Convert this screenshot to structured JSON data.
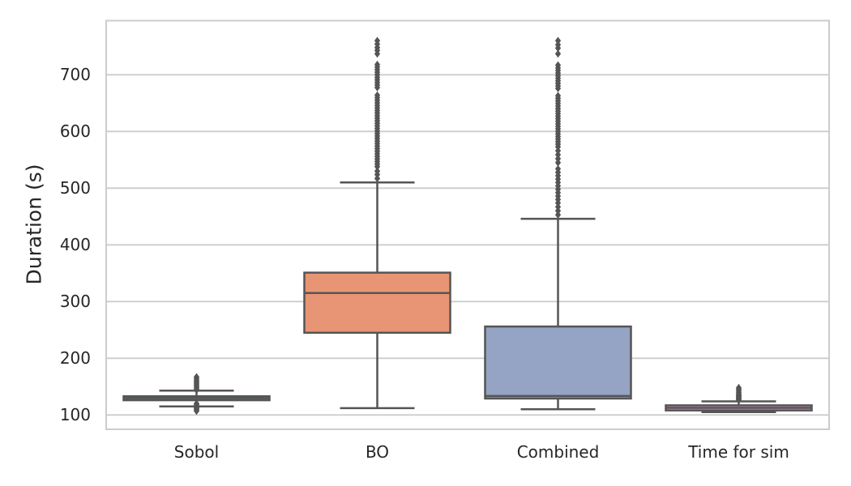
{
  "chart_data": {
    "type": "boxplot",
    "title": "",
    "xlabel": "",
    "ylabel": "Duration (s)",
    "categories": [
      "Sobol",
      "BO",
      "Combined",
      "Time for sim"
    ],
    "yticks": [
      100,
      200,
      300,
      400,
      500,
      600,
      700
    ],
    "ylim": [
      74,
      796
    ],
    "grid": "horizontal",
    "legend": "none",
    "colors": {
      "line": "#555555",
      "grid": "#cccccc",
      "text": "#262626",
      "background": "#ffffff"
    },
    "series": [
      {
        "category": "Sobol",
        "q1": 126,
        "median": 129.5,
        "q3": 133,
        "whisker_low": 115,
        "whisker_high": 143,
        "fill": "#70b9a0",
        "outliers": [
          167,
          164,
          161,
          158.5,
          156,
          153.5,
          151,
          148.5,
          146,
          144,
          120,
          118,
          113,
          111,
          109,
          107
        ]
      },
      {
        "category": "BO",
        "q1": 245,
        "median": 315,
        "q3": 351,
        "whisker_low": 112,
        "whisker_high": 510,
        "fill": "#e89575",
        "outliers": [
          760,
          754,
          748,
          743,
          737,
          718,
          713.5,
          709,
          704.5,
          700,
          695.5,
          691,
          686.5,
          682,
          677.5,
          664,
          659.5,
          655,
          650.5,
          646,
          641.5,
          637,
          632.5,
          628,
          623.5,
          619,
          614.5,
          610,
          605.5,
          601,
          596.5,
          592,
          587.5,
          583,
          578.5,
          574,
          569.5,
          565,
          560.5,
          556,
          551.5,
          547,
          542.5,
          538,
          530,
          524,
          517
        ]
      },
      {
        "category": "Combined",
        "q1": 129,
        "median": 133.5,
        "q3": 256,
        "whisker_low": 110,
        "whisker_high": 446,
        "fill": "#95a3c4",
        "outliers": [
          760,
          753,
          747,
          737,
          717,
          712,
          707.5,
          703,
          698.5,
          694,
          689.5,
          685,
          680.5,
          676,
          663,
          658.5,
          654,
          649.5,
          645,
          640.5,
          636,
          631.5,
          627,
          622.5,
          618,
          613.5,
          609,
          604.5,
          600,
          595.5,
          591,
          586.5,
          582,
          577.5,
          573,
          566,
          559,
          552,
          545,
          534,
          528,
          522,
          516,
          510,
          504,
          498,
          492,
          486,
          480,
          474,
          467,
          460,
          453
        ]
      },
      {
        "category": "Time for sim",
        "q1": 108,
        "median": 112.5,
        "q3": 117,
        "whisker_low": 105,
        "whisker_high": 124,
        "fill": "#dc96c0",
        "outliers": [
          148,
          145.5,
          143,
          140,
          137.5,
          135.5,
          134,
          132.5,
          131,
          129.5,
          128,
          126.5
        ]
      }
    ]
  }
}
